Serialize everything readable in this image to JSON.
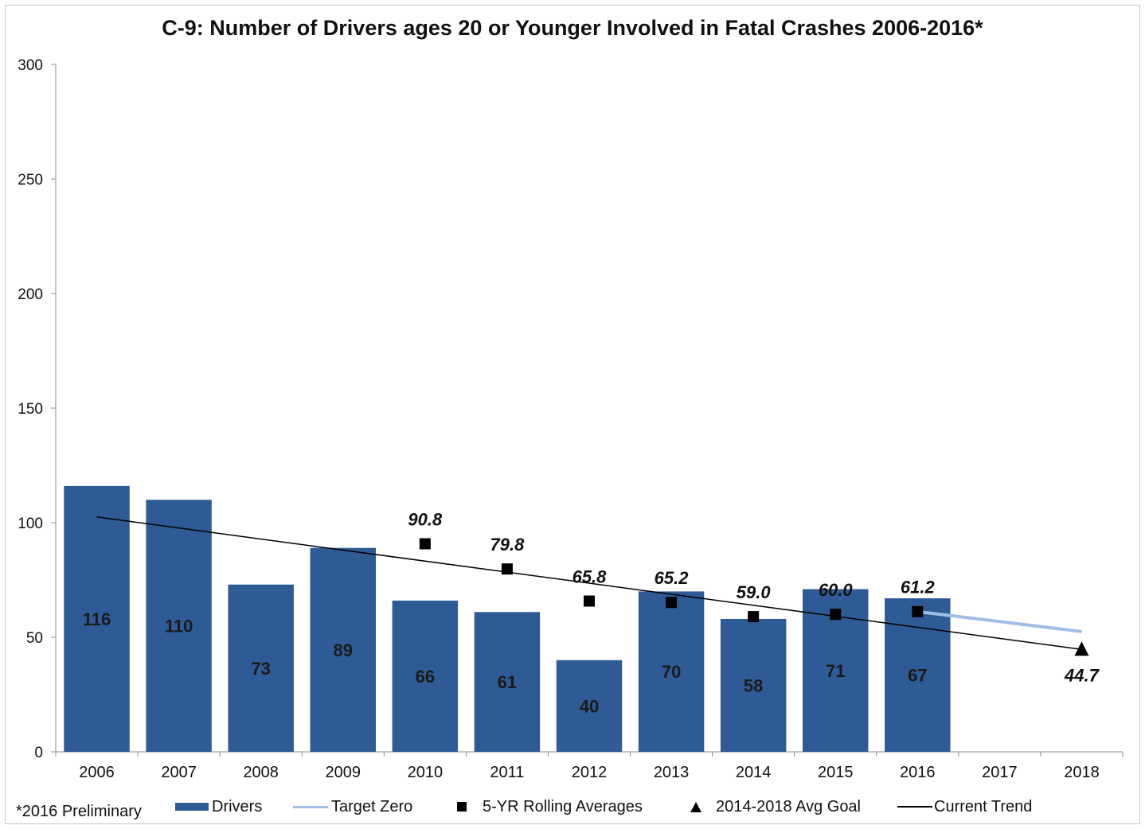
{
  "chart_data": {
    "type": "bar",
    "title": "C-9: Number of Drivers ages 20 or Younger Involved in Fatal Crashes 2006-2016*",
    "xlabel": "",
    "ylabel": "",
    "ylim": [
      0,
      300
    ],
    "yticks": [
      0,
      50,
      100,
      150,
      200,
      250,
      300
    ],
    "categories": [
      "2006",
      "2007",
      "2008",
      "2009",
      "2010",
      "2011",
      "2012",
      "2013",
      "2014",
      "2015",
      "2016",
      "2017",
      "2018"
    ],
    "series": [
      {
        "name": "Drivers",
        "kind": "bar",
        "color": "#2e5b95",
        "values": [
          116,
          110,
          73,
          89,
          66,
          61,
          40,
          70,
          58,
          71,
          67,
          null,
          null
        ],
        "labels": [
          "116",
          "110",
          "73",
          "89",
          "66",
          "61",
          "40",
          "70",
          "58",
          "71",
          "67",
          "",
          ""
        ]
      },
      {
        "name": "Target Zero",
        "kind": "line",
        "color": "#9fbde6",
        "points": [
          {
            "x": "2016",
            "y": 61.2
          },
          {
            "x": "2018",
            "y": 52.5
          }
        ]
      },
      {
        "name": "5-YR Rolling Averages",
        "kind": "marker-square",
        "color": "#000000",
        "points": [
          {
            "x": "2010",
            "y": 90.8
          },
          {
            "x": "2011",
            "y": 79.8
          },
          {
            "x": "2012",
            "y": 65.8
          },
          {
            "x": "2013",
            "y": 65.2
          },
          {
            "x": "2014",
            "y": 59.0
          },
          {
            "x": "2015",
            "y": 60.0
          },
          {
            "x": "2016",
            "y": 61.2
          }
        ],
        "labels": [
          "90.8",
          "79.8",
          "65.8",
          "65.2",
          "59.0",
          "60.0",
          "61.2"
        ]
      },
      {
        "name": "2014-2018 Avg Goal",
        "kind": "marker-triangle",
        "color": "#000000",
        "points": [
          {
            "x": "2018",
            "y": 44.7
          }
        ],
        "labels": [
          "44.7"
        ]
      },
      {
        "name": "Current Trend",
        "kind": "line",
        "color": "#000000",
        "points": [
          {
            "x": "2006",
            "y": 102.5
          },
          {
            "x": "2018",
            "y": 44.7
          }
        ]
      }
    ],
    "legend": "bottom",
    "grid": false,
    "footnote": "*2016 Preliminary"
  }
}
